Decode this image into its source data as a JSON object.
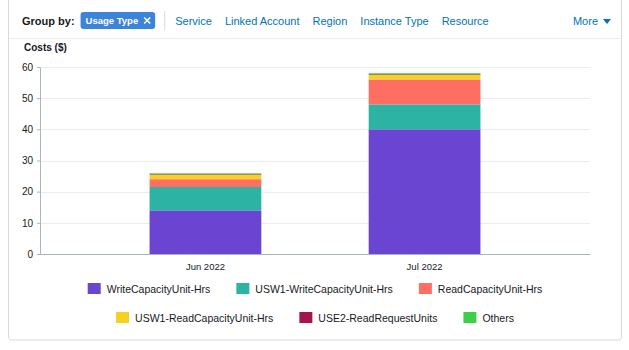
{
  "toolbar": {
    "label": "Group by:",
    "chip": "Usage Type",
    "options": [
      "Service",
      "Linked Account",
      "Region",
      "Instance Type",
      "Resource"
    ],
    "more": "More"
  },
  "chart_data": {
    "type": "bar",
    "stacked": true,
    "y_label": "Costs ($)",
    "categories": [
      "Jun 2022",
      "Jul 2022"
    ],
    "series": [
      {
        "name": "WriteCapacityUnit-Hrs",
        "color": "#6a45d1",
        "values": [
          14,
          40
        ]
      },
      {
        "name": "USW1-WriteCapacityUnit-Hrs",
        "color": "#2db3a4",
        "values": [
          7.5,
          8
        ]
      },
      {
        "name": "ReadCapacityUnit-Hrs",
        "color": "#ff6e63",
        "values": [
          2.5,
          8
        ]
      },
      {
        "name": "USW1-ReadCapacityUnit-Hrs",
        "color": "#f4d21f",
        "values": [
          1.5,
          1.5
        ]
      },
      {
        "name": "USE2-ReadRequestUnits",
        "color": "#a3164d",
        "values": [
          0.2,
          0.2
        ]
      },
      {
        "name": "Others",
        "color": "#3ecf4a",
        "values": [
          0.2,
          0.3
        ]
      }
    ],
    "ylim": [
      0,
      60
    ],
    "yticks": [
      0,
      10,
      20,
      30,
      40,
      50,
      60
    ],
    "grid": true,
    "legend": "bottom"
  }
}
